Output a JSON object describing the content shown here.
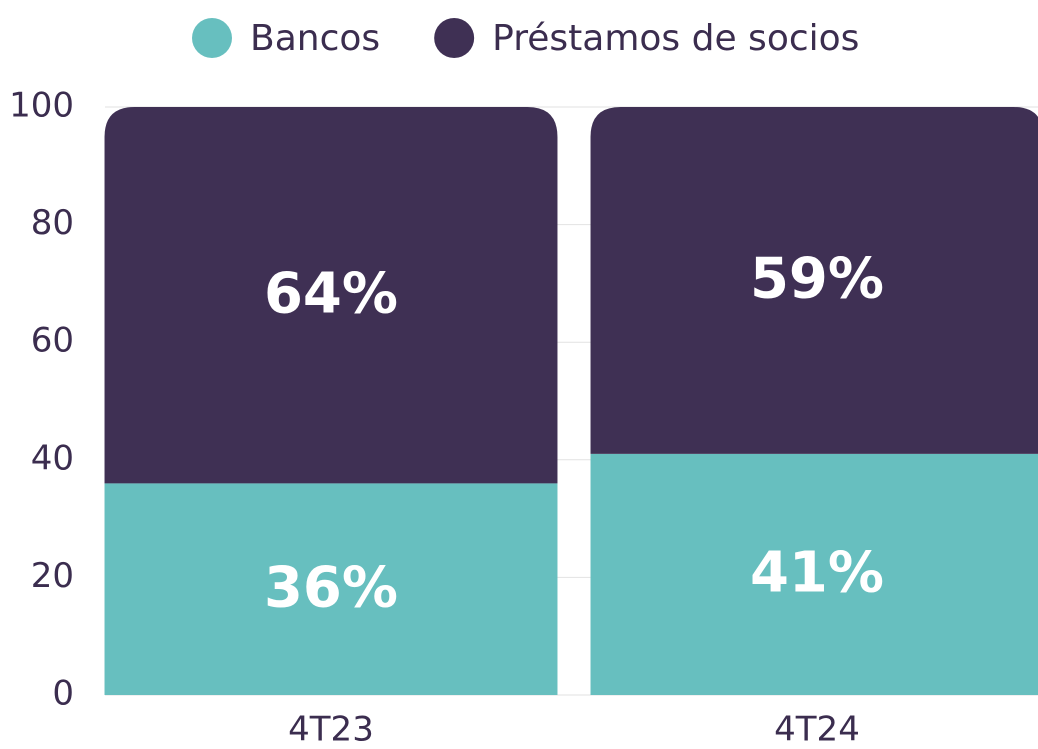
{
  "chart_data": {
    "type": "stacked_bar",
    "categories": [
      "4T23",
      "4T24"
    ],
    "series": [
      {
        "name": "Bancos",
        "color": "#67bfbf",
        "values": [
          36,
          41
        ],
        "value_labels": [
          "36%",
          "41%"
        ]
      },
      {
        "name": "Préstamos de socios",
        "color": "#3f3054",
        "values": [
          64,
          59
        ],
        "value_labels": [
          "64%",
          "59%"
        ]
      }
    ],
    "ylim": [
      0,
      100
    ],
    "yticks": [
      0,
      20,
      40,
      60,
      80,
      100
    ],
    "grid": true,
    "legend": "top"
  }
}
